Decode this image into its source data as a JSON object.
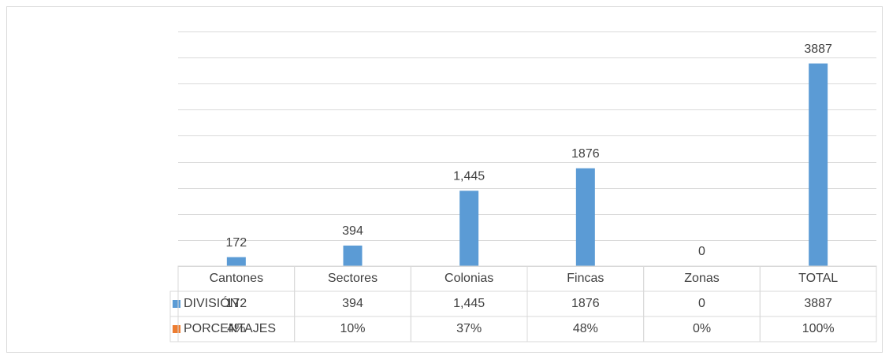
{
  "chart_data": {
    "type": "bar",
    "categories": [
      "Cantones",
      "Sectores",
      "Colonias",
      "Fincas",
      "Zonas",
      "TOTAL"
    ],
    "series": [
      {
        "name": "DIVISIÓN",
        "color": "#5b9bd5",
        "values": [
          172,
          394,
          1445,
          1876,
          0,
          3887
        ],
        "value_labels": [
          "172",
          "394",
          "1,445",
          "1876",
          "0",
          "3887"
        ]
      },
      {
        "name": "PORCENTAJES",
        "color": "#ed7d31",
        "values": [
          4,
          10,
          37,
          48,
          0,
          100
        ],
        "value_labels": [
          "4%",
          "10%",
          "37%",
          "48%",
          "0%",
          "100%"
        ]
      }
    ],
    "ylim": [
      0,
      4500
    ],
    "yticks": [
      0,
      500,
      1000,
      1500,
      2000,
      2500,
      3000,
      3500,
      4000,
      4500
    ],
    "grid": true,
    "data_table": true
  }
}
